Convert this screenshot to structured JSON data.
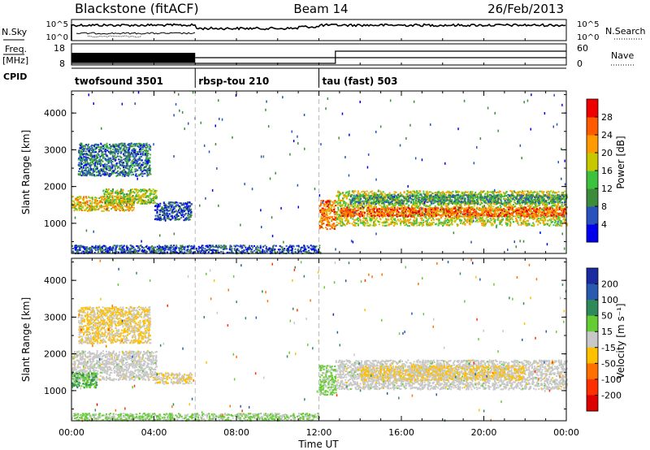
{
  "header": {
    "station": "Blackstone (fitACF)",
    "beam": "Beam 14",
    "date": "26/Feb/2013"
  },
  "panels_top": {
    "nsky_label": "N.Sky",
    "nsearch_label": "N.Search",
    "nsky_ticks": [
      "10^5",
      "10^0"
    ],
    "nsearch_ticks": [
      "10^5",
      "10^0"
    ],
    "freq_label_line1": "Freq.",
    "freq_label_line2": "[MHz]",
    "freq_ticks": [
      "18",
      "8"
    ],
    "nave_label": "Nave",
    "nave_ticks": [
      "60",
      "0"
    ],
    "cpid_label": "CPID",
    "cpid_segments": [
      {
        "label": "twofsound 3501",
        "start": 0,
        "end": 6
      },
      {
        "label": "rbsp-tou 210",
        "start": 6,
        "end": 12
      },
      {
        "label": "tau (fast) 503",
        "start": 12,
        "end": 24
      }
    ]
  },
  "axes": {
    "xlabel": "Time UT",
    "xticks": [
      "00:00",
      "04:00",
      "08:00",
      "12:00",
      "16:00",
      "20:00",
      "00:00"
    ],
    "ylabel": "Slant Range [km]",
    "yticks": [
      "1000",
      "2000",
      "3000",
      "4000"
    ]
  },
  "colorbars": {
    "power": {
      "title": "Power [dB]",
      "ticks": [
        "4",
        "8",
        "12",
        "16",
        "20",
        "24",
        "28"
      ],
      "colors": [
        "#0000ee",
        "#2a52be",
        "#3c8c3c",
        "#3cc23c",
        "#c8c800",
        "#ff9a00",
        "#ff5a00",
        "#ee0000"
      ]
    },
    "velocity": {
      "title": "Velocity [m s⁻¹]",
      "ticks": [
        "200",
        "100",
        "50",
        "15",
        "-15",
        "-50",
        "-100",
        "-200"
      ],
      "colors": [
        "#1a2aa0",
        "#2a5ab0",
        "#2e8a5a",
        "#66cc33",
        "#c8c8c8",
        "#ffc000",
        "#ff7000",
        "#ff3000",
        "#dd0000"
      ]
    }
  },
  "chart_data": [
    {
      "type": "heatmap",
      "title": "Power",
      "xlim": [
        0,
        24
      ],
      "ylim": [
        180,
        4600
      ],
      "zlabel": "Power [dB]",
      "zlim": [
        0,
        32
      ],
      "patches": [
        {
          "x": [
            0.0,
            3.0
          ],
          "y": [
            1350,
            1750
          ],
          "z": 20
        },
        {
          "x": [
            1.5,
            4.1
          ],
          "y": [
            1550,
            1950
          ],
          "z": 16
        },
        {
          "x": [
            0.3,
            3.8
          ],
          "y": [
            2300,
            3200
          ],
          "z": 8
        },
        {
          "x": [
            4.0,
            5.8
          ],
          "y": [
            1100,
            1600
          ],
          "z": 6
        },
        {
          "x": [
            0.0,
            12.0
          ],
          "y": [
            200,
            420
          ],
          "z": 6
        },
        {
          "x": [
            12.0,
            12.8
          ],
          "y": [
            850,
            1650
          ],
          "z": 24
        },
        {
          "x": [
            12.8,
            24.0
          ],
          "y": [
            950,
            1900
          ],
          "z": 18
        },
        {
          "x": [
            13.0,
            24.0
          ],
          "y": [
            1200,
            1450
          ],
          "z": 26
        },
        {
          "x": [
            13.5,
            24.0
          ],
          "y": [
            1550,
            1800
          ],
          "z": 10
        }
      ]
    },
    {
      "type": "heatmap",
      "title": "Velocity",
      "xlim": [
        0,
        24
      ],
      "ylim": [
        180,
        4600
      ],
      "zlabel": "Velocity [m s⁻¹]",
      "zlim": [
        -250,
        250
      ],
      "patches": [
        {
          "x": [
            0.0,
            4.1
          ],
          "y": [
            1300,
            2100
          ],
          "z": 0
        },
        {
          "x": [
            0.3,
            3.8
          ],
          "y": [
            2300,
            3300
          ],
          "z": -30
        },
        {
          "x": [
            0.0,
            1.2
          ],
          "y": [
            1100,
            1500
          ],
          "z": 80
        },
        {
          "x": [
            4.0,
            5.8
          ],
          "y": [
            1200,
            1500
          ],
          "z": -20
        },
        {
          "x": [
            0.0,
            12.0
          ],
          "y": [
            200,
            400
          ],
          "z": 30
        },
        {
          "x": [
            12.0,
            12.8
          ],
          "y": [
            900,
            1700
          ],
          "z": 40
        },
        {
          "x": [
            12.8,
            24.0
          ],
          "y": [
            1050,
            1850
          ],
          "z": 0
        },
        {
          "x": [
            14.0,
            22.0
          ],
          "y": [
            1300,
            1700
          ],
          "z": -30
        }
      ]
    }
  ]
}
